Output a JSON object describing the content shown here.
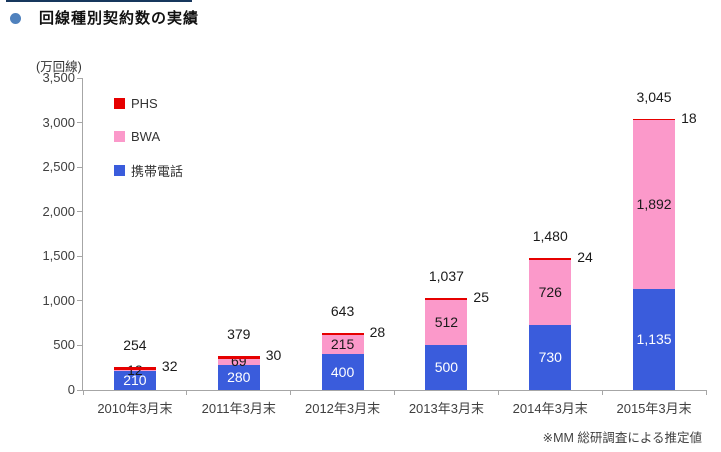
{
  "chart_data": {
    "type": "bar",
    "stacked": true,
    "title": "回線種別契約数の実績",
    "unit_label": "(万回線)",
    "footnote": "※MM 総研調査による推定値",
    "categories": [
      "2010年3月末",
      "2011年3月末",
      "2012年3月末",
      "2013年3月末",
      "2014年3月末",
      "2015年3月末"
    ],
    "series": [
      {
        "name": "携帯電話",
        "color": "#3A5CDC",
        "text_color": "#FFFFFF",
        "label_position": "inside",
        "values": [
          210,
          280,
          400,
          500,
          730,
          1135
        ]
      },
      {
        "name": "BWA",
        "color": "#FB99CA",
        "text_color": "#1A1A1A",
        "label_position": "inside",
        "values": [
          12,
          69,
          215,
          512,
          726,
          1892
        ]
      },
      {
        "name": "PHS",
        "color": "#E60000",
        "text_color": "#1A1A1A",
        "label_position": "right",
        "values": [
          32,
          30,
          28,
          25,
          24,
          18
        ]
      }
    ],
    "totals": [
      254,
      379,
      643,
      1037,
      1480,
      3045
    ],
    "ylim": [
      0,
      3500
    ],
    "ytick_step": 500,
    "legend_order": [
      "PHS",
      "BWA",
      "携帯電話"
    ],
    "axis_color": "#A6A6A6",
    "grid": false,
    "legend_position": "upper-left-inside"
  }
}
